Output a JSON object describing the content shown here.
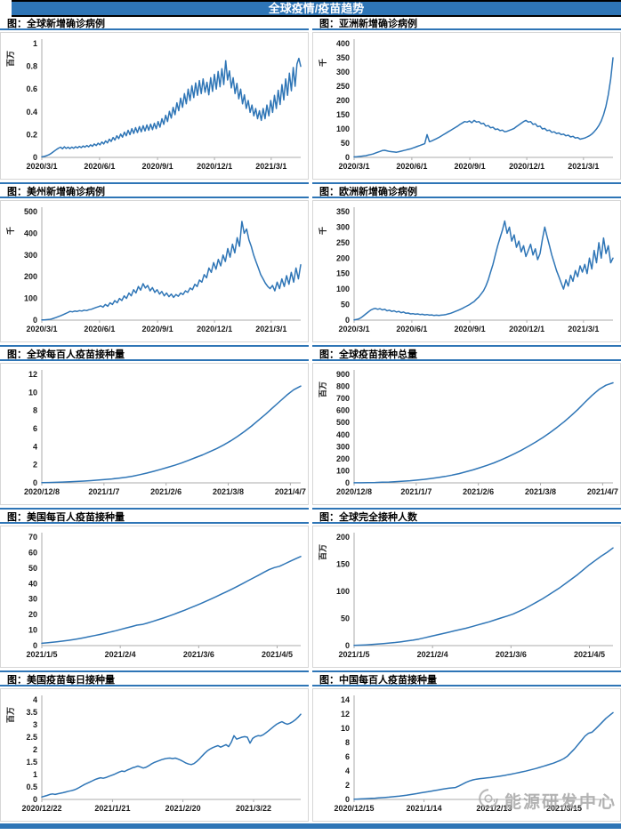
{
  "page": {
    "title": "全球疫情/疫苗趋势",
    "watermark_text": "能源研发中心"
  },
  "colors": {
    "accent": "#2E75B6",
    "line": "#2E75B6",
    "axis": "#ABABAB",
    "panel_border": "#D6D6D6",
    "watermark": "#9E9E9E"
  },
  "chart_data": [
    {
      "type": "line",
      "title": "图：全球新增确诊病例",
      "unit": "百万",
      "ylim": [
        0,
        1
      ],
      "y_ticks": [
        0,
        0.2,
        0.4,
        0.6,
        0.8,
        1
      ],
      "x_ticks": [
        {
          "label": "2020/3/1",
          "pos": 0.0
        },
        {
          "label": "2020/6/1",
          "pos": 0.223
        },
        {
          "label": "2020/9/1",
          "pos": 0.447
        },
        {
          "label": "2020/12/1",
          "pos": 0.667
        },
        {
          "label": "2021/3/1",
          "pos": 0.886
        }
      ],
      "values": [
        0.005,
        0.008,
        0.012,
        0.018,
        0.025,
        0.035,
        0.048,
        0.06,
        0.072,
        0.082,
        0.09,
        0.076,
        0.093,
        0.079,
        0.09,
        0.077,
        0.091,
        0.08,
        0.094,
        0.083,
        0.097,
        0.086,
        0.1,
        0.09,
        0.105,
        0.093,
        0.11,
        0.098,
        0.118,
        0.104,
        0.125,
        0.11,
        0.135,
        0.118,
        0.145,
        0.127,
        0.16,
        0.14,
        0.175,
        0.152,
        0.19,
        0.165,
        0.205,
        0.178,
        0.222,
        0.19,
        0.238,
        0.2,
        0.252,
        0.21,
        0.262,
        0.218,
        0.27,
        0.225,
        0.278,
        0.232,
        0.285,
        0.238,
        0.292,
        0.244,
        0.3,
        0.252,
        0.315,
        0.266,
        0.34,
        0.29,
        0.37,
        0.315,
        0.405,
        0.345,
        0.44,
        0.375,
        0.48,
        0.41,
        0.52,
        0.44,
        0.56,
        0.47,
        0.6,
        0.5,
        0.63,
        0.525,
        0.655,
        0.545,
        0.675,
        0.56,
        0.69,
        0.572,
        0.66,
        0.55,
        0.7,
        0.58,
        0.73,
        0.6,
        0.755,
        0.62,
        0.78,
        0.64,
        0.85,
        0.68,
        0.76,
        0.61,
        0.7,
        0.56,
        0.65,
        0.515,
        0.6,
        0.47,
        0.55,
        0.43,
        0.5,
        0.395,
        0.46,
        0.365,
        0.43,
        0.34,
        0.41,
        0.325,
        0.43,
        0.34,
        0.46,
        0.365,
        0.5,
        0.395,
        0.545,
        0.43,
        0.59,
        0.465,
        0.64,
        0.505,
        0.69,
        0.545,
        0.74,
        0.585,
        0.79,
        0.625,
        0.82,
        0.87,
        0.8
      ]
    },
    {
      "type": "line",
      "title": "图：亚洲新增确诊病例",
      "unit": "千",
      "ylim": [
        0,
        400
      ],
      "y_ticks": [
        0,
        50,
        100,
        150,
        200,
        250,
        300,
        350,
        400
      ],
      "x_ticks": [
        {
          "label": "2020/3/1",
          "pos": 0.0
        },
        {
          "label": "2020/6/1",
          "pos": 0.223
        },
        {
          "label": "2020/9/1",
          "pos": 0.447
        },
        {
          "label": "2020/12/1",
          "pos": 0.667
        },
        {
          "label": "2021/3/1",
          "pos": 0.886
        }
      ],
      "values": [
        2,
        2,
        3,
        4,
        5,
        6,
        8,
        10,
        12,
        15,
        18,
        21,
        24,
        25,
        23,
        21,
        20,
        19,
        18,
        20,
        22,
        24,
        26,
        28,
        30,
        33,
        36,
        39,
        42,
        45,
        48,
        80,
        55,
        58,
        62,
        66,
        70,
        75,
        80,
        85,
        90,
        95,
        100,
        105,
        110,
        116,
        121,
        126,
        124,
        128,
        122,
        130,
        124,
        126,
        118,
        120,
        110,
        112,
        104,
        106,
        98,
        100,
        94,
        96,
        90,
        92,
        95,
        98,
        102,
        108,
        114,
        120,
        126,
        130,
        124,
        126,
        116,
        118,
        108,
        110,
        100,
        102,
        94,
        96,
        88,
        90,
        84,
        86,
        80,
        82,
        76,
        78,
        72,
        74,
        68,
        70,
        64,
        66,
        68,
        72,
        76,
        82,
        90,
        100,
        112,
        128,
        150,
        180,
        220,
        275,
        350
      ]
    },
    {
      "type": "line",
      "title": "图：美州新增确诊病例",
      "unit": "千",
      "ylim": [
        0,
        500
      ],
      "y_ticks": [
        0,
        100,
        200,
        300,
        400,
        500
      ],
      "x_ticks": [
        {
          "label": "2020/3/1",
          "pos": 0.0
        },
        {
          "label": "2020/6/1",
          "pos": 0.223
        },
        {
          "label": "2020/9/1",
          "pos": 0.447
        },
        {
          "label": "2020/12/1",
          "pos": 0.667
        },
        {
          "label": "2021/3/1",
          "pos": 0.886
        }
      ],
      "values": [
        1,
        1,
        2,
        3,
        5,
        8,
        12,
        16,
        20,
        25,
        30,
        35,
        40,
        38,
        42,
        40,
        44,
        42,
        46,
        44,
        48,
        50,
        54,
        58,
        62,
        66,
        60,
        72,
        64,
        80,
        72,
        90,
        80,
        100,
        90,
        112,
        100,
        125,
        112,
        140,
        125,
        155,
        138,
        168,
        148,
        160,
        135,
        150,
        128,
        140,
        120,
        132,
        112,
        125,
        108,
        120,
        105,
        118,
        110,
        125,
        118,
        135,
        128,
        148,
        140,
        165,
        155,
        185,
        175,
        210,
        195,
        240,
        220,
        265,
        235,
        280,
        250,
        300,
        270,
        330,
        290,
        350,
        310,
        380,
        340,
        455,
        400,
        420,
        370,
        340,
        300,
        270,
        240,
        210,
        190,
        170,
        155,
        145,
        160,
        135,
        175,
        145,
        190,
        155,
        205,
        165,
        220,
        175,
        240,
        190,
        255
      ]
    },
    {
      "type": "line",
      "title": "图：欧洲新增确诊病例",
      "unit": "千",
      "ylim": [
        0,
        350
      ],
      "y_ticks": [
        0,
        50,
        100,
        150,
        200,
        250,
        300,
        350
      ],
      "x_ticks": [
        {
          "label": "2020/3/1",
          "pos": 0.0
        },
        {
          "label": "2020/6/1",
          "pos": 0.223
        },
        {
          "label": "2020/9/1",
          "pos": 0.447
        },
        {
          "label": "2020/12/1",
          "pos": 0.667
        },
        {
          "label": "2021/3/1",
          "pos": 0.886
        }
      ],
      "values": [
        1,
        2,
        4,
        8,
        14,
        20,
        26,
        32,
        36,
        38,
        35,
        37,
        33,
        35,
        30,
        32,
        28,
        30,
        26,
        28,
        24,
        26,
        22,
        23,
        20,
        21,
        19,
        20,
        18,
        19,
        17,
        18,
        16,
        17,
        15,
        16,
        15,
        16,
        17,
        18,
        20,
        22,
        25,
        28,
        31,
        34,
        38,
        42,
        46,
        50,
        55,
        60,
        68,
        75,
        85,
        95,
        110,
        130,
        155,
        180,
        210,
        240,
        265,
        290,
        320,
        280,
        300,
        255,
        275,
        235,
        255,
        220,
        240,
        205,
        225,
        245,
        210,
        230,
        195,
        215,
        260,
        300,
        270,
        240,
        210,
        185,
        160,
        140,
        120,
        100,
        130,
        110,
        145,
        125,
        160,
        140,
        175,
        155,
        180,
        150,
        200,
        165,
        225,
        185,
        250,
        200,
        265,
        215,
        240,
        185,
        200
      ]
    },
    {
      "type": "line",
      "title": "图：全球每百人疫苗接种量",
      "unit": "",
      "ylim": [
        0,
        12
      ],
      "y_ticks": [
        0,
        2,
        4,
        6,
        8,
        10,
        12
      ],
      "x_ticks": [
        {
          "label": "2020/12/8",
          "pos": 0.0
        },
        {
          "label": "2021/1/7",
          "pos": 0.24
        },
        {
          "label": "2021/2/6",
          "pos": 0.48
        },
        {
          "label": "2021/3/8",
          "pos": 0.72
        },
        {
          "label": "2021/4/7",
          "pos": 0.96
        }
      ],
      "values": [
        0.02,
        0.04,
        0.06,
        0.09,
        0.12,
        0.16,
        0.2,
        0.25,
        0.3,
        0.36,
        0.43,
        0.52,
        0.62,
        0.74,
        0.9,
        1.08,
        1.28,
        1.5,
        1.72,
        1.95,
        2.2,
        2.5,
        2.8,
        3.1,
        3.45,
        3.8,
        4.2,
        4.65,
        5.15,
        5.7,
        6.3,
        6.95,
        7.6,
        8.3,
        9.0,
        9.7,
        10.3,
        10.7
      ]
    },
    {
      "type": "line",
      "title": "图：全球疫苗接种总量",
      "unit": "百万",
      "ylim": [
        0,
        900
      ],
      "y_ticks": [
        0,
        100,
        200,
        300,
        400,
        500,
        600,
        700,
        800,
        900
      ],
      "x_ticks": [
        {
          "label": "2020/12/8",
          "pos": 0.0
        },
        {
          "label": "2021/1/7",
          "pos": 0.24
        },
        {
          "label": "2021/2/6",
          "pos": 0.48
        },
        {
          "label": "2021/3/8",
          "pos": 0.72
        },
        {
          "label": "2021/4/7",
          "pos": 0.96
        }
      ],
      "values": [
        0.5,
        1,
        2,
        3,
        5,
        7,
        10,
        14,
        18,
        23,
        29,
        36,
        44,
        53,
        64,
        77,
        92,
        108,
        126,
        145,
        166,
        190,
        216,
        244,
        274,
        306,
        340,
        377,
        417,
        460,
        506,
        556,
        610,
        668,
        725,
        775,
        810,
        830
      ]
    },
    {
      "type": "line",
      "title": "图：美国每百人疫苗接种量",
      "unit": "",
      "ylim": [
        0,
        70
      ],
      "y_ticks": [
        0,
        10,
        20,
        30,
        40,
        50,
        60,
        70
      ],
      "x_ticks": [
        {
          "label": "2021/1/5",
          "pos": 0.0
        },
        {
          "label": "2021/2/4",
          "pos": 0.303
        },
        {
          "label": "2021/3/6",
          "pos": 0.606
        },
        {
          "label": "2021/4/5",
          "pos": 0.909
        }
      ],
      "values": [
        1.5,
        1.8,
        2.1,
        2.5,
        2.9,
        3.4,
        3.9,
        4.5,
        5.1,
        5.8,
        6.5,
        7.2,
        8.0,
        8.8,
        9.6,
        10.5,
        11.4,
        12.3,
        13.2,
        13.6,
        14.6,
        15.6,
        16.7,
        17.8,
        19.0,
        20.2,
        21.5,
        22.8,
        24.2,
        25.6,
        27.0,
        28.5,
        30.0,
        31.6,
        33.2,
        34.8,
        36.5,
        38.2,
        40.0,
        41.8,
        43.6,
        45.4,
        47.2,
        49.0,
        50.3,
        51.2,
        52.8,
        54.4,
        56.0,
        57.5
      ]
    },
    {
      "type": "line",
      "title": "图：全球完全接种人数",
      "unit": "百万",
      "ylim": [
        0,
        200
      ],
      "y_ticks": [
        0,
        50,
        100,
        150,
        200
      ],
      "x_ticks": [
        {
          "label": "2021/1/5",
          "pos": 0.0
        },
        {
          "label": "2021/2/4",
          "pos": 0.303
        },
        {
          "label": "2021/3/6",
          "pos": 0.606
        },
        {
          "label": "2021/4/5",
          "pos": 0.909
        }
      ],
      "values": [
        0.3,
        0.8,
        1.3,
        2,
        2.8,
        3.7,
        4.7,
        5.8,
        7,
        8.5,
        10,
        12,
        14.5,
        17,
        19.5,
        22,
        24.5,
        27,
        29.5,
        32,
        35,
        38,
        41,
        44,
        47.5,
        51,
        54.5,
        58,
        63,
        68,
        74,
        80,
        86,
        93,
        100,
        107,
        115,
        123,
        131,
        140,
        149,
        157,
        165,
        172,
        180
      ]
    },
    {
      "type": "line",
      "title": "图：美国疫苗每日接种量",
      "unit": "百万",
      "ylim": [
        0,
        4
      ],
      "y_ticks": [
        0,
        0.5,
        1,
        1.5,
        2,
        2.5,
        3,
        3.5,
        4
      ],
      "x_ticks": [
        {
          "label": "2020/12/22",
          "pos": 0.0
        },
        {
          "label": "2021/1/21",
          "pos": 0.273
        },
        {
          "label": "2021/2/20",
          "pos": 0.545
        },
        {
          "label": "2021/3/22",
          "pos": 0.818
        }
      ],
      "values": [
        0.1,
        0.13,
        0.16,
        0.2,
        0.22,
        0.2,
        0.23,
        0.25,
        0.27,
        0.3,
        0.33,
        0.35,
        0.38,
        0.42,
        0.48,
        0.54,
        0.6,
        0.65,
        0.7,
        0.75,
        0.8,
        0.84,
        0.87,
        0.85,
        0.88,
        0.92,
        0.96,
        1.0,
        1.05,
        1.1,
        1.14,
        1.12,
        1.18,
        1.22,
        1.27,
        1.3,
        1.34,
        1.3,
        1.26,
        1.29,
        1.35,
        1.42,
        1.48,
        1.52,
        1.56,
        1.6,
        1.63,
        1.65,
        1.66,
        1.64,
        1.66,
        1.62,
        1.58,
        1.52,
        1.46,
        1.42,
        1.4,
        1.44,
        1.52,
        1.62,
        1.74,
        1.85,
        1.95,
        2.02,
        2.08,
        2.12,
        2.16,
        2.1,
        2.15,
        2.2,
        2.12,
        2.3,
        2.56,
        2.42,
        2.46,
        2.5,
        2.52,
        2.5,
        2.26,
        2.45,
        2.52,
        2.56,
        2.55,
        2.6,
        2.68,
        2.76,
        2.85,
        2.94,
        3.02,
        3.08,
        3.12,
        3.06,
        3.02,
        3.06,
        3.12,
        3.2,
        3.3,
        3.42
      ]
    },
    {
      "type": "line",
      "title": "图：中国每百人疫苗接种量",
      "unit": "",
      "ylim": [
        0,
        14
      ],
      "y_ticks": [
        0,
        2,
        4,
        6,
        8,
        10,
        12,
        14
      ],
      "x_ticks": [
        {
          "label": "2020/12/15",
          "pos": 0.0
        },
        {
          "label": "2021/1/14",
          "pos": 0.27
        },
        {
          "label": "2021/2/13",
          "pos": 0.541
        },
        {
          "label": "2021/3/15",
          "pos": 0.811
        }
      ],
      "values": [
        0.03,
        0.05,
        0.07,
        0.1,
        0.12,
        0.15,
        0.18,
        0.21,
        0.25,
        0.29,
        0.33,
        0.38,
        0.43,
        0.48,
        0.54,
        0.6,
        0.67,
        0.75,
        0.83,
        0.92,
        1.0,
        1.08,
        1.16,
        1.25,
        1.33,
        1.42,
        1.5,
        1.58,
        1.62,
        1.68,
        1.9,
        2.15,
        2.4,
        2.6,
        2.75,
        2.85,
        2.92,
        2.97,
        3.02,
        3.08,
        3.15,
        3.22,
        3.3,
        3.38,
        3.47,
        3.56,
        3.66,
        3.76,
        3.87,
        3.98,
        4.1,
        4.22,
        4.35,
        4.5,
        4.65,
        4.8,
        4.95,
        5.1,
        5.3,
        5.5,
        5.75,
        6.1,
        6.6,
        7.1,
        7.7,
        8.3,
        8.9,
        9.3,
        9.45,
        9.9,
        10.4,
        10.9,
        11.4,
        11.8,
        12.2
      ]
    }
  ]
}
